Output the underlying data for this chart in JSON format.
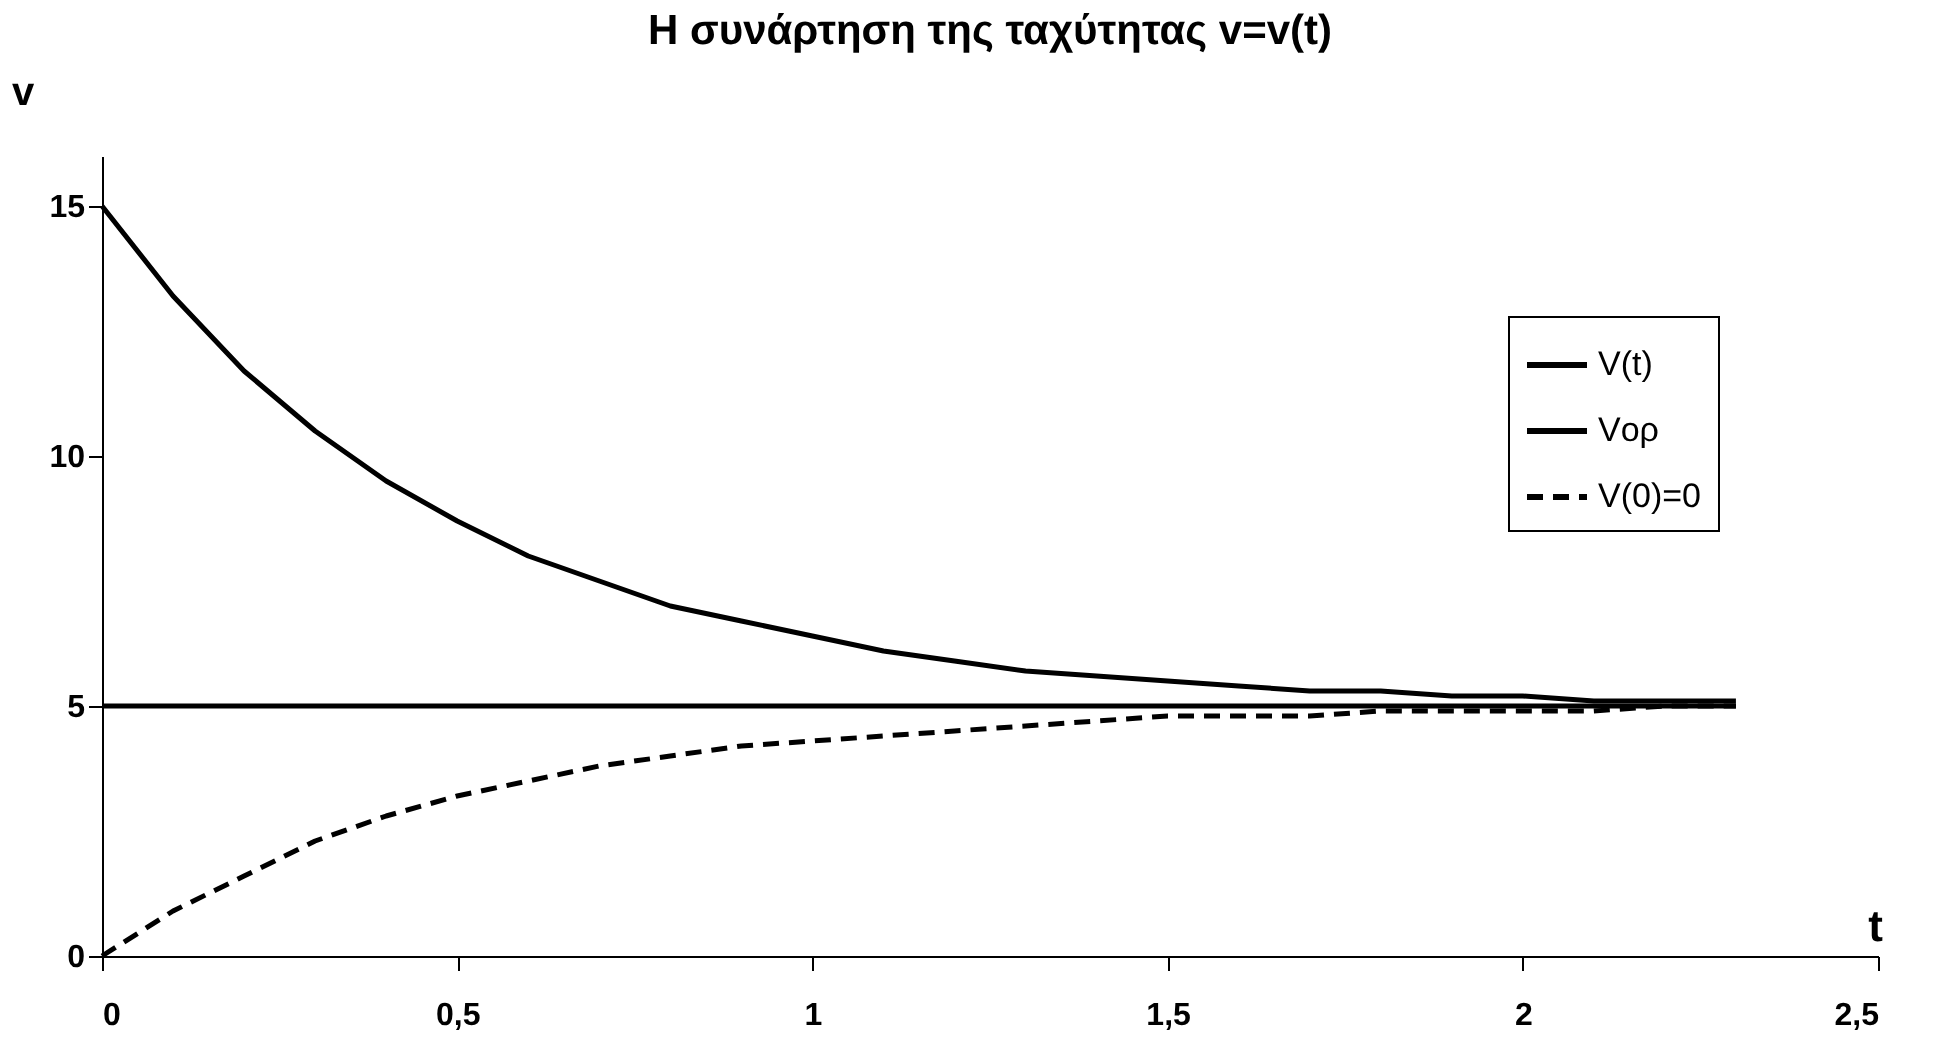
{
  "chart_data": {
    "type": "line",
    "title": "Η συνάρτηση της ταχύτητας v=v(t)",
    "xlabel": "t",
    "ylabel": "v",
    "xlim": [
      0,
      2.5
    ],
    "ylim": [
      0,
      16
    ],
    "xticks": [
      0,
      {
        "value": 0.5,
        "label": "0,5"
      },
      1,
      {
        "value": 1.5,
        "label": "1,5"
      },
      2,
      {
        "value": 2.5,
        "label": "2,5"
      }
    ],
    "yticks": [
      0,
      5,
      10,
      15
    ],
    "grid": false,
    "legend": "top right",
    "series": [
      {
        "name": "V(t)",
        "color": "#000000",
        "line_style": "solid",
        "x": [
          0,
          0.1,
          0.2,
          0.3,
          0.4,
          0.5,
          0.6,
          0.7,
          0.8,
          0.9,
          1.0,
          1.1,
          1.2,
          1.3,
          1.4,
          1.5,
          1.6,
          1.7,
          1.8,
          1.9,
          2.0,
          2.1,
          2.2,
          2.3
        ],
        "values": [
          15,
          13.2,
          11.7,
          10.5,
          9.5,
          8.7,
          8.0,
          7.5,
          7.0,
          6.7,
          6.4,
          6.1,
          5.9,
          5.7,
          5.6,
          5.5,
          5.4,
          5.3,
          5.3,
          5.2,
          5.2,
          5.1,
          5.1,
          5.1
        ]
      },
      {
        "name": "Vορ",
        "color": "#000000",
        "line_style": "solid",
        "x": [
          0,
          2.3
        ],
        "values": [
          5,
          5
        ]
      },
      {
        "name": "V(0)=0",
        "color": "#000000",
        "line_style": "dashed",
        "x": [
          0,
          0.1,
          0.2,
          0.3,
          0.4,
          0.5,
          0.6,
          0.7,
          0.8,
          0.9,
          1.0,
          1.1,
          1.2,
          1.3,
          1.4,
          1.5,
          1.6,
          1.7,
          1.8,
          1.9,
          2.0,
          2.1,
          2.2,
          2.3
        ],
        "values": [
          0,
          0.9,
          1.6,
          2.3,
          2.8,
          3.2,
          3.5,
          3.8,
          4.0,
          4.2,
          4.3,
          4.4,
          4.5,
          4.6,
          4.7,
          4.8,
          4.8,
          4.8,
          4.9,
          4.9,
          4.9,
          4.9,
          5.0,
          5.0
        ]
      }
    ]
  }
}
